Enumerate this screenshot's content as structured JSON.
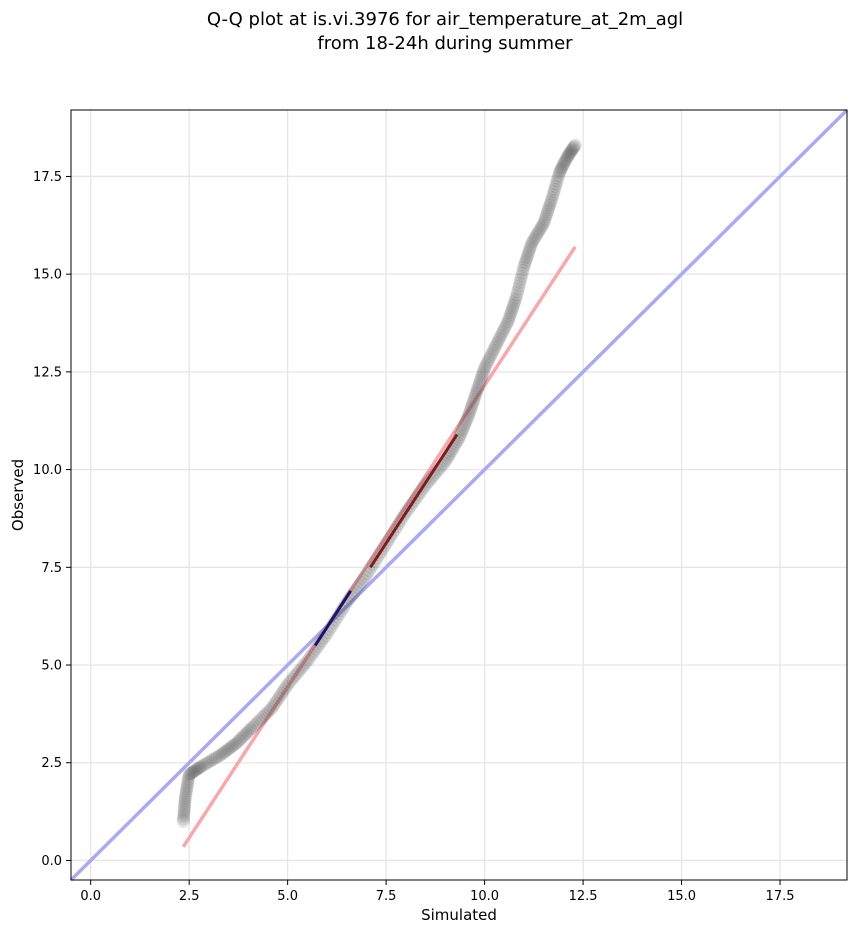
{
  "chart_data": {
    "type": "scatter",
    "title": "Q-Q plot at is.vi.3976 for air_temperature_at_2m_agl",
    "subtitle": "from 18-24h during summer",
    "xlabel": "Simulated",
    "ylabel": "Observed",
    "xlim": [
      -0.5,
      19.2
    ],
    "ylim": [
      -0.5,
      19.2
    ],
    "xticks": [
      0.0,
      2.5,
      5.0,
      7.5,
      10.0,
      12.5,
      15.0,
      17.5
    ],
    "yticks": [
      0.0,
      2.5,
      5.0,
      7.5,
      10.0,
      12.5,
      15.0,
      17.5
    ],
    "xtick_labels": [
      "0.0",
      "2.5",
      "5.0",
      "7.5",
      "10.0",
      "12.5",
      "15.0",
      "17.5"
    ],
    "ytick_labels": [
      "0.0",
      "2.5",
      "5.0",
      "7.5",
      "10.0",
      "12.5",
      "15.0",
      "17.5"
    ],
    "grid": true,
    "quantile_knots": {
      "x": [
        2.35,
        2.4,
        2.5,
        2.8,
        3.3,
        3.7,
        4.1,
        4.6,
        5.0,
        5.5,
        6.0,
        6.5,
        7.0,
        7.5,
        8.0,
        8.5,
        9.0,
        9.35,
        9.6,
        9.8,
        10.0,
        10.3,
        10.6,
        10.8,
        11.0,
        11.2,
        11.5,
        11.7,
        11.9,
        12.1,
        12.3
      ],
      "y": [
        1.0,
        1.6,
        2.2,
        2.4,
        2.7,
        3.0,
        3.4,
        3.9,
        4.5,
        5.1,
        5.8,
        6.6,
        7.3,
        8.1,
        8.9,
        9.6,
        10.2,
        10.8,
        11.4,
        12.0,
        12.6,
        13.2,
        13.8,
        14.4,
        15.2,
        15.8,
        16.3,
        16.9,
        17.6,
        18.0,
        18.3
      ]
    },
    "n_points": 300,
    "point_color": "#444444",
    "identity_line": {
      "x": [
        -0.5,
        19.2
      ],
      "y": [
        -0.5,
        19.2
      ],
      "color": "#aaaaf0"
    },
    "fit_line": {
      "x": [
        2.35,
        12.3
      ],
      "y": [
        0.35,
        15.7
      ],
      "color": "#f5a8ad"
    },
    "highlight_segments": [
      {
        "x": [
          5.7,
          6.6
        ],
        "y": [
          5.5,
          6.9
        ],
        "color": "#000066"
      },
      {
        "x": [
          7.1,
          9.3
        ],
        "y": [
          7.5,
          10.9
        ],
        "color": "#770000"
      }
    ]
  }
}
